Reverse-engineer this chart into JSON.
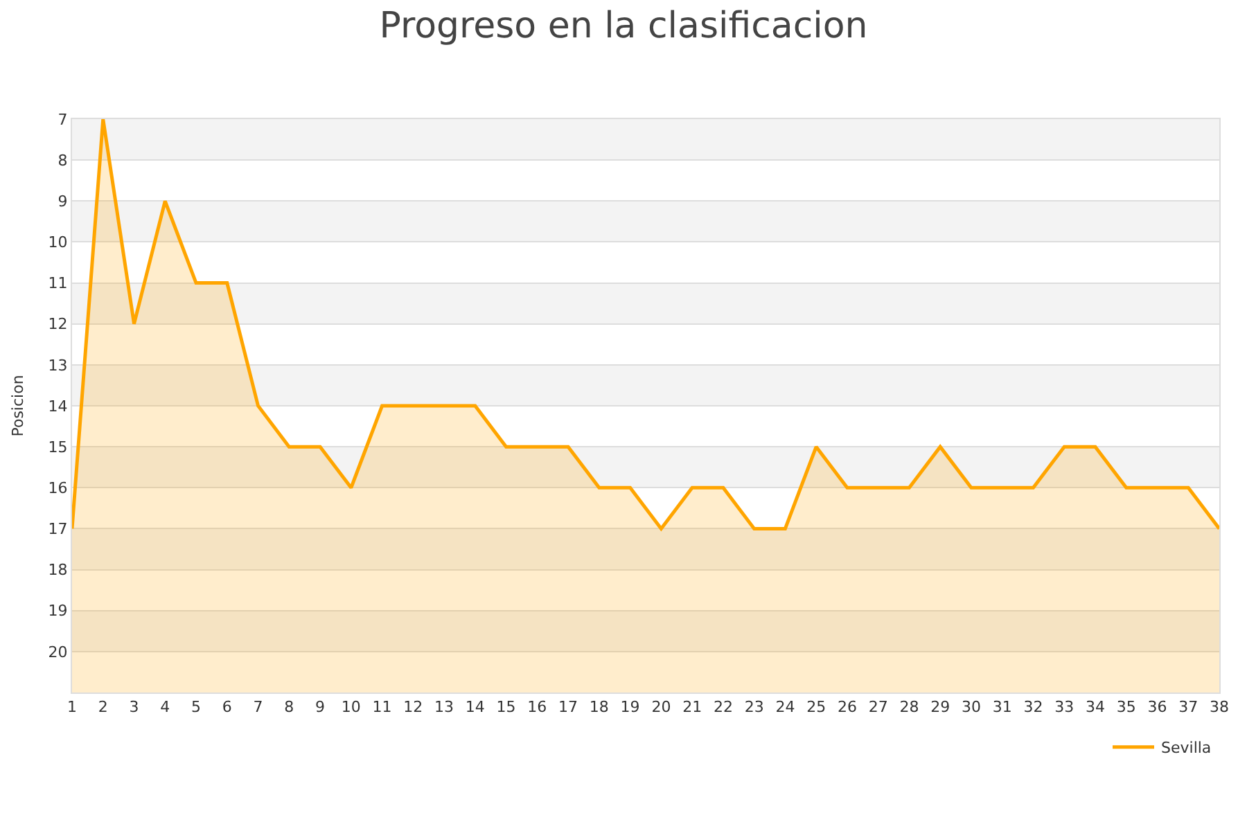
{
  "chart_data": {
    "type": "area",
    "title": "Progreso en la clasificacion",
    "ylabel": "Posicion",
    "x": [
      1,
      2,
      3,
      4,
      5,
      6,
      7,
      8,
      9,
      10,
      11,
      12,
      13,
      14,
      15,
      16,
      17,
      18,
      19,
      20,
      21,
      22,
      23,
      24,
      25,
      26,
      27,
      28,
      29,
      30,
      31,
      32,
      33,
      34,
      35,
      36,
      37,
      38
    ],
    "series": [
      {
        "name": "Sevilla",
        "color": "#ffa500",
        "values": [
          17,
          7,
          12,
          9,
          11,
          11,
          14,
          15,
          15,
          16,
          14,
          14,
          14,
          14,
          15,
          15,
          15,
          16,
          16,
          17,
          16,
          16,
          17,
          17,
          15,
          16,
          16,
          16,
          15,
          16,
          16,
          16,
          15,
          15,
          16,
          16,
          16,
          17
        ]
      }
    ],
    "xlim": [
      1,
      38
    ],
    "xticks": [
      1,
      2,
      3,
      4,
      5,
      6,
      7,
      8,
      9,
      10,
      11,
      12,
      13,
      14,
      15,
      16,
      17,
      18,
      19,
      20,
      21,
      22,
      23,
      24,
      25,
      26,
      27,
      28,
      29,
      30,
      31,
      32,
      33,
      34,
      35,
      36,
      37,
      38
    ],
    "ylim": [
      21,
      7
    ],
    "yticks": [
      7,
      8,
      9,
      10,
      11,
      12,
      13,
      14,
      15,
      16,
      17,
      18,
      19,
      20
    ],
    "grid": "y",
    "legend": "bottom right",
    "marker": "none",
    "line_style": "solid"
  }
}
